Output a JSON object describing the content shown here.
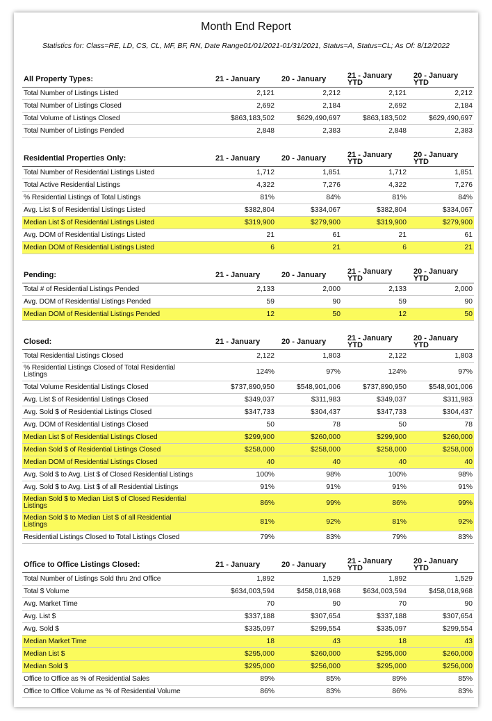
{
  "header": {
    "title": "Month End Report",
    "subtitle": "Statistics for: Class=RE, LD, CS, CL, MF, BF, RN, Date Range01/01/2021-01/31/2021, Status=A, Status=CL; As Of: 8/12/2022"
  },
  "columns": [
    "21 - January",
    "20 - January",
    "21 - January\nYTD",
    "20 - January\nYTD"
  ],
  "sections": [
    {
      "title": "All Property Types:",
      "rows": [
        {
          "cells": [
            "Total Number of Listings Listed",
            "2,121",
            "2,212",
            "2,121",
            "2,212"
          ]
        },
        {
          "cells": [
            "Total Number of Listings Closed",
            "2,692",
            "2,184",
            "2,692",
            "2,184"
          ]
        },
        {
          "cells": [
            "Total Volume of Listings Closed",
            "$863,183,502",
            "$629,490,697",
            "$863,183,502",
            "$629,490,697"
          ]
        },
        {
          "cells": [
            "Total Number of Listings Pended",
            "2,848",
            "2,383",
            "2,848",
            "2,383"
          ]
        }
      ]
    },
    {
      "title": "Residential Properties Only:",
      "rows": [
        {
          "cells": [
            "Total Number of Residential Listings Listed",
            "1,712",
            "1,851",
            "1,712",
            "1,851"
          ]
        },
        {
          "cells": [
            "Total Active Residential Listings",
            "4,322",
            "7,276",
            "4,322",
            "7,276"
          ]
        },
        {
          "cells": [
            "% Residential Listings of Total Listings",
            "81%",
            "84%",
            "81%",
            "84%"
          ]
        },
        {
          "cells": [
            "Avg. List $ of Residential Listings Listed",
            "$382,804",
            "$334,067",
            "$382,804",
            "$334,067"
          ]
        },
        {
          "cells": [
            "Median List $ of Residential Listings Listed",
            "$319,900",
            "$279,900",
            "$319,900",
            "$279,900"
          ],
          "highlight": true
        },
        {
          "cells": [
            "Avg. DOM of Residential Listings Listed",
            "21",
            "61",
            "21",
            "61"
          ]
        },
        {
          "cells": [
            "Median DOM of Residential Listings Listed",
            "6",
            "21",
            "6",
            "21"
          ],
          "highlight": true
        }
      ]
    },
    {
      "title": "Pending:",
      "rows": [
        {
          "cells": [
            "Total # of Residential Listings Pended",
            "2,133",
            "2,000",
            "2,133",
            "2,000"
          ]
        },
        {
          "cells": [
            "Avg. DOM of Residential Listings Pended",
            "59",
            "90",
            "59",
            "90"
          ]
        },
        {
          "cells": [
            "Median DOM of Residential Listings Pended",
            "12",
            "50",
            "12",
            "50"
          ],
          "highlight": true
        }
      ]
    },
    {
      "title": "Closed:",
      "rows": [
        {
          "cells": [
            "Total Residential Listings Closed",
            "2,122",
            "1,803",
            "2,122",
            "1,803"
          ]
        },
        {
          "cells": [
            "% Residential Listings Closed of Total Residential\nListings",
            "124%",
            "97%",
            "124%",
            "97%"
          ]
        },
        {
          "cells": [
            "Total Volume Residential Listings Closed",
            "$737,890,950",
            "$548,901,006",
            "$737,890,950",
            "$548,901,006"
          ]
        },
        {
          "cells": [
            "Avg. List $ of Residential Listings Closed",
            "$349,037",
            "$311,983",
            "$349,037",
            "$311,983"
          ]
        },
        {
          "cells": [
            "Avg. Sold $ of Residential Listings Closed",
            "$347,733",
            "$304,437",
            "$347,733",
            "$304,437"
          ]
        },
        {
          "cells": [
            "Avg. DOM of Residential Listings Closed",
            "50",
            "78",
            "50",
            "78"
          ]
        },
        {
          "cells": [
            "Median List $ of Residential Listings Closed",
            "$299,900",
            "$260,000",
            "$299,900",
            "$260,000"
          ],
          "highlight": true
        },
        {
          "cells": [
            "Median Sold $ of Residential Listings Closed",
            "$258,000",
            "$258,000",
            "$258,000",
            "$258,000"
          ],
          "highlight": true
        },
        {
          "cells": [
            "Median DOM of Residential Listings Closed",
            "40",
            "40",
            "40",
            "40"
          ],
          "highlight": true
        },
        {
          "cells": [
            "Avg. Sold $ to Avg. List $ of Closed Residential Listings",
            "100%",
            "98%",
            "100%",
            "98%"
          ]
        },
        {
          "cells": [
            "Avg. Sold $ to Avg. List $ of all Residential Listings",
            "91%",
            "91%",
            "91%",
            "91%"
          ]
        },
        {
          "cells": [
            "Median Sold $ to Median List $ of Closed Residential\nListings",
            "86%",
            "99%",
            "86%",
            "99%"
          ],
          "highlight": true
        },
        {
          "cells": [
            "Median Sold $ to Median List $ of all Residential\nListings",
            "81%",
            "92%",
            "81%",
            "92%"
          ],
          "highlight": true
        },
        {
          "cells": [
            "Residential Listings Closed to Total Listings Closed",
            "79%",
            "83%",
            "79%",
            "83%"
          ]
        }
      ]
    },
    {
      "title": "Office to Office Listings Closed:",
      "rows": [
        {
          "cells": [
            "Total Number of Listings Sold thru 2nd Office",
            "1,892",
            "1,529",
            "1,892",
            "1,529"
          ]
        },
        {
          "cells": [
            "Total $ Volume",
            "$634,003,594",
            "$458,018,968",
            "$634,003,594",
            "$458,018,968"
          ]
        },
        {
          "cells": [
            "Avg. Market Time",
            "70",
            "90",
            "70",
            "90"
          ]
        },
        {
          "cells": [
            "Avg. List $",
            "$337,188",
            "$307,654",
            "$337,188",
            "$307,654"
          ]
        },
        {
          "cells": [
            "Avg. Sold $",
            "$335,097",
            "$299,554",
            "$335,097",
            "$299,554"
          ]
        },
        {
          "cells": [
            "Median Market Time",
            "18",
            "43",
            "18",
            "43"
          ],
          "highlight": true
        },
        {
          "cells": [
            "Median List $",
            "$295,000",
            "$260,000",
            "$295,000",
            "$260,000"
          ],
          "highlight": true
        },
        {
          "cells": [
            "Median Sold $",
            "$295,000",
            "$256,000",
            "$295,000",
            "$256,000"
          ],
          "highlight": true
        },
        {
          "cells": [
            "Office to Office as % of Residential Sales",
            "89%",
            "85%",
            "89%",
            "85%"
          ]
        },
        {
          "cells": [
            "Office to Office Volume as % of Residential Volume",
            "86%",
            "83%",
            "86%",
            "83%"
          ]
        }
      ]
    }
  ]
}
